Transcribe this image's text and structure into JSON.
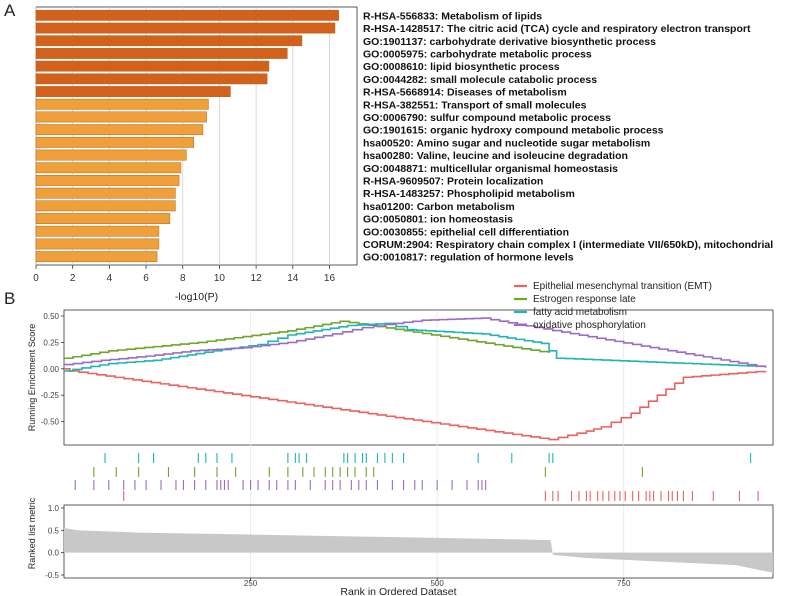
{
  "panels": {
    "a": "A",
    "b": "B"
  },
  "chart_data": [
    {
      "type": "bar",
      "orientation": "horizontal",
      "xlabel": "-log10(P)",
      "xlim": [
        0,
        17.5
      ],
      "xticks": [
        0,
        2,
        4,
        6,
        8,
        10,
        12,
        14,
        16
      ],
      "grid": true,
      "colors": {
        "dark": "#d2611b",
        "light": "#f0a03a"
      },
      "categories": [
        "R-HSA-556833: Metabolism of lipids",
        "R-HSA-1428517: The citric acid (TCA) cycle and respiratory electron transport",
        "GO:1901137: carbohydrate derivative biosynthetic process",
        "GO:0005975: carbohydrate metabolic process",
        "GO:0008610: lipid biosynthetic process",
        "GO:0044282: small molecule catabolic process",
        "R-HSA-5668914: Diseases of metabolism",
        "R-HSA-382551: Transport of small molecules",
        "GO:0006790: sulfur compound metabolic process",
        "GO:1901615: organic hydroxy compound metabolic process",
        "hsa00520: Amino sugar and nucleotide sugar metabolism",
        "hsa00280: Valine, leucine and isoleucine degradation",
        "GO:0048871: multicellular organismal homeostasis",
        "R-HSA-9609507: Protein localization",
        "R-HSA-1483257: Phospholipid metabolism",
        "hsa01200: Carbon metabolism",
        "GO:0050801: ion homeostasis",
        "GO:0030855: epithelial cell differentiation",
        "CORUM:2904: Respiratory chain complex I (intermediate VII/650kD), mitochondrial",
        "GO:0010817: regulation of hormone levels"
      ],
      "values": [
        16.5,
        16.3,
        14.5,
        13.7,
        12.7,
        12.6,
        10.6,
        9.4,
        9.3,
        9.1,
        8.6,
        8.2,
        7.9,
        7.8,
        7.6,
        7.6,
        7.3,
        6.7,
        6.7,
        6.6
      ],
      "dark_count": 7
    },
    {
      "type": "line",
      "subtype": "gsea-enrichment",
      "xlabel": "Rank in Ordered Dataset",
      "ylabel_top": "Running Enrichment Score",
      "ylabel_bottom": "Ranked list metric",
      "xlim": [
        0,
        950
      ],
      "xticks": [
        250,
        500,
        750
      ],
      "ylim_top": [
        -0.75,
        0.5
      ],
      "yticks_top": [
        "0.50",
        "0.25",
        "0.00",
        "-0.25",
        "-0.50"
      ],
      "ylim_bottom": [
        -0.5,
        1.0
      ],
      "yticks_bottom": [
        "1.0",
        "0.5",
        "0.0",
        "-0.5"
      ],
      "legend_position": "top-right",
      "series": [
        {
          "name": "Epithelial mesenchymal transition (EMT)",
          "color": "#e8635f",
          "x": [
            0,
            8,
            650,
            700,
            720,
            760,
            830,
            940
          ],
          "y": [
            0.0,
            -0.02,
            -0.67,
            -0.59,
            -0.55,
            -0.42,
            -0.08,
            -0.02
          ],
          "hits": [
            80,
            645,
            655,
            662,
            680,
            690,
            700,
            705,
            715,
            722,
            730,
            738,
            745,
            752,
            762,
            770,
            780,
            785,
            790,
            800,
            810,
            815,
            822,
            830,
            842,
            870,
            905,
            930
          ]
        },
        {
          "name": "Estrogen response late",
          "color": "#6ea52a",
          "x": [
            0,
            60,
            180,
            300,
            370,
            420,
            650
          ],
          "y": [
            0.1,
            0.17,
            0.25,
            0.36,
            0.45,
            0.4,
            0.15
          ],
          "hits": [
            40,
            70,
            100,
            140,
            175,
            205,
            230,
            275,
            300,
            320,
            335,
            350,
            360,
            370,
            380,
            390,
            405,
            415,
            645,
            775
          ]
        },
        {
          "name": "fatty acid metabolism",
          "color": "#1fb5b5",
          "x": [
            0,
            60,
            120,
            200,
            260,
            300,
            380,
            430,
            460,
            560,
            640,
            660,
            940
          ],
          "y": [
            -0.02,
            0.05,
            0.08,
            0.17,
            0.23,
            0.32,
            0.41,
            0.43,
            0.37,
            0.33,
            0.24,
            0.1,
            0.02
          ],
          "hits": [
            55,
            100,
            120,
            180,
            190,
            205,
            225,
            300,
            310,
            315,
            325,
            375,
            380,
            390,
            400,
            405,
            420,
            430,
            440,
            455,
            555,
            600,
            650,
            655,
            920
          ]
        },
        {
          "name": "oxidative phosphorylation",
          "color": "#9b6bc6",
          "x": [
            0,
            50,
            110,
            170,
            240,
            300,
            360,
            400,
            430,
            480,
            560,
            940
          ],
          "y": [
            0.04,
            0.08,
            0.12,
            0.17,
            0.2,
            0.25,
            0.33,
            0.39,
            0.42,
            0.46,
            0.48,
            0.01
          ],
          "hits": [
            15,
            40,
            60,
            80,
            95,
            110,
            130,
            150,
            160,
            175,
            190,
            205,
            210,
            215,
            220,
            240,
            250,
            260,
            275,
            285,
            300,
            310,
            330,
            350,
            360,
            370,
            385,
            395,
            405,
            420,
            440,
            455,
            470,
            480,
            500,
            520,
            540,
            555,
            560,
            565
          ]
        }
      ],
      "ranked_metric": {
        "color": "#c8c8c8",
        "x": [
          0,
          20,
          100,
          200,
          300,
          400,
          500,
          600,
          652,
          655,
          700,
          800,
          900,
          950
        ],
        "y": [
          0.55,
          0.5,
          0.45,
          0.42,
          0.39,
          0.36,
          0.33,
          0.3,
          0.28,
          -0.05,
          -0.12,
          -0.2,
          -0.28,
          -0.45
        ]
      }
    }
  ]
}
